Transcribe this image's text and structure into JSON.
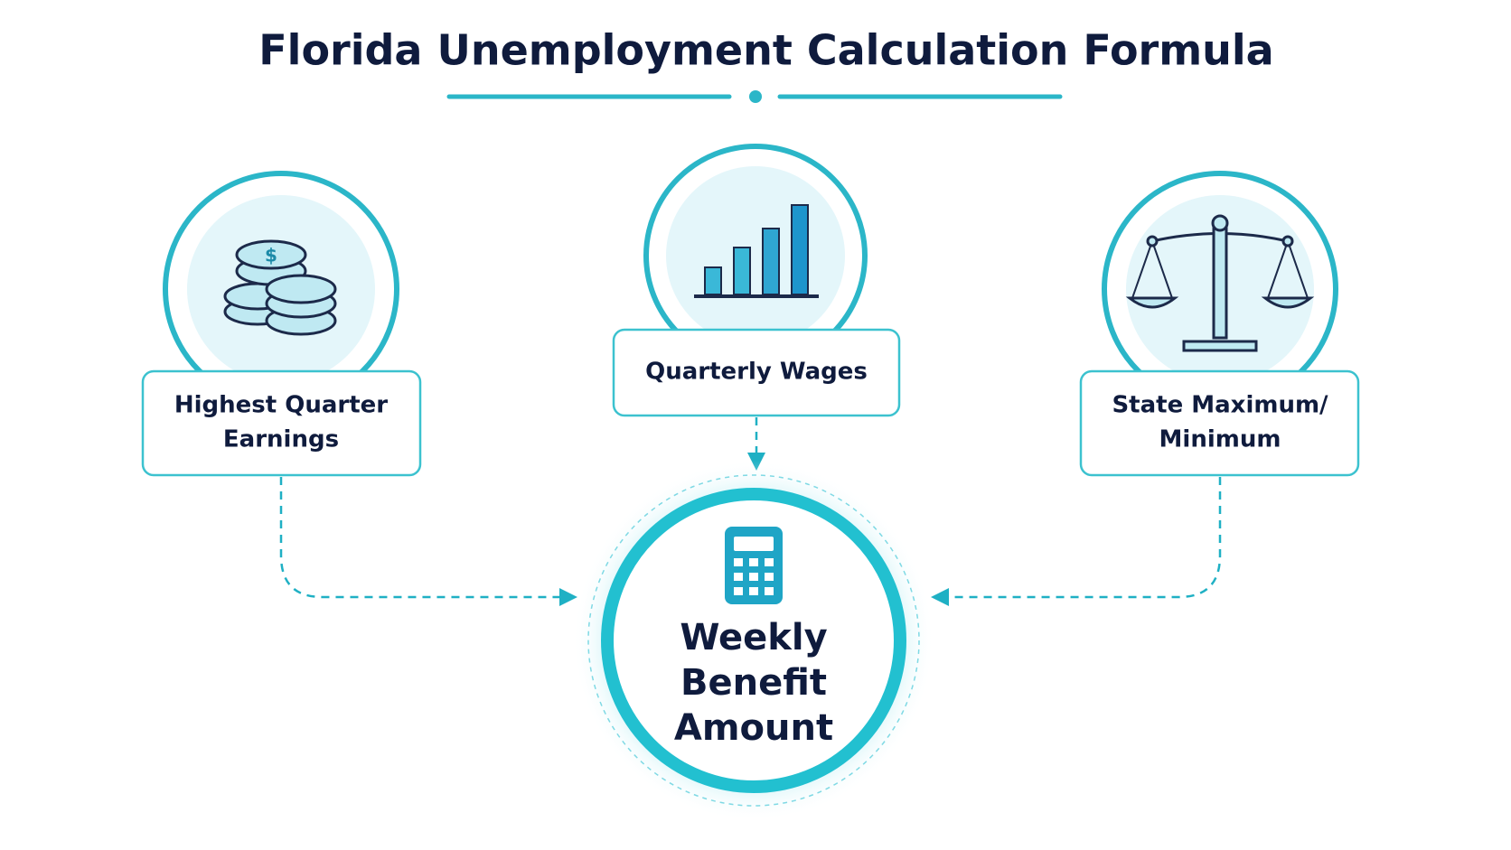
{
  "title": "Florida Unemployment Calculation Formula",
  "nodes": [
    {
      "lines": [
        "Highest Quarter",
        "Earnings"
      ]
    },
    {
      "lines": [
        "Quarterly Wages"
      ]
    },
    {
      "lines": [
        "State Maximum/",
        "Minimum"
      ]
    }
  ],
  "result": {
    "lines": [
      "Weekly",
      "Benefit",
      "Amount"
    ]
  }
}
